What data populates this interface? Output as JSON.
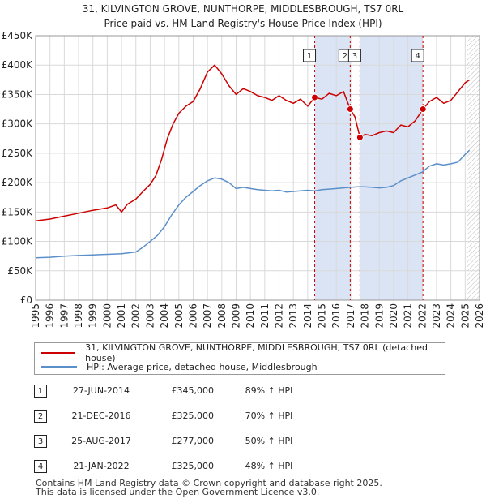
{
  "title_line1": "31, KILVINGTON GROVE, NUNTHORPE, MIDDLESBROUGH, TS7 0RL",
  "title_line2": "Price paid vs. HM Land Registry's House Price Index (HPI)",
  "colors": {
    "property": "#cc0000",
    "hpi": "#5b8fc9",
    "band": "#dbe4f5",
    "grid": "#d9d9d9",
    "marker_line": "#cc0000"
  },
  "chart_data": {
    "type": "line",
    "x_unit": "year",
    "xlim": [
      1995,
      2026
    ],
    "ylim": [
      0,
      450000
    ],
    "y_ticks": [
      0,
      50000,
      100000,
      150000,
      200000,
      250000,
      300000,
      350000,
      400000,
      450000
    ],
    "y_tick_labels": [
      "£0",
      "£50K",
      "£100K",
      "£150K",
      "£200K",
      "£250K",
      "£300K",
      "£350K",
      "£400K",
      "£450K"
    ],
    "x_ticks": [
      1995,
      1996,
      1997,
      1998,
      1999,
      2000,
      2001,
      2002,
      2003,
      2004,
      2005,
      2006,
      2007,
      2008,
      2009,
      2010,
      2011,
      2012,
      2013,
      2014,
      2015,
      2016,
      2017,
      2018,
      2019,
      2020,
      2021,
      2022,
      2023,
      2024,
      2025,
      2026
    ],
    "x_tick_labels": [
      "1995",
      "1996",
      "1997",
      "1998",
      "1999",
      "2000",
      "2001",
      "2002",
      "2003",
      "2004",
      "2005",
      "2006",
      "2007",
      "2008",
      "2009",
      "2010",
      "2011",
      "2012",
      "2013",
      "2014",
      "2015",
      "2016",
      "2017",
      "2018",
      "2019",
      "2020",
      "2021",
      "2022",
      "2023",
      "2024",
      "2025",
      "2026"
    ],
    "grid": true,
    "shaded_ranges": [
      [
        2014.49,
        2016.97
      ],
      [
        2017.65,
        2022.05
      ]
    ],
    "future_hatch_start": 2025.1,
    "series": [
      {
        "name": "31, KILVINGTON GROVE, NUNTHORPE, MIDDLESBROUGH, TS7 0RL (detached house)",
        "color": "#cc0000",
        "x": [
          1995,
          1996,
          1997,
          1998,
          1999,
          2000,
          2000.6,
          2001,
          2001.4,
          2002,
          2002.5,
          2003,
          2003.4,
          2003.8,
          2004.2,
          2004.6,
          2005,
          2005.5,
          2006,
          2006.5,
          2007,
          2007.5,
          2008,
          2008.5,
          2009,
          2009.5,
          2010,
          2010.5,
          2011,
          2011.5,
          2012,
          2012.5,
          2013,
          2013.5,
          2014,
          2014.49,
          2015,
          2015.5,
          2016,
          2016.5,
          2016.97,
          2017.3,
          2017.65,
          2018,
          2018.5,
          2019,
          2019.5,
          2020,
          2020.5,
          2021,
          2021.5,
          2022.05,
          2022.5,
          2023,
          2023.5,
          2024,
          2024.5,
          2025,
          2025.3
        ],
        "values": [
          135000,
          138000,
          143000,
          148000,
          153000,
          157000,
          162000,
          150000,
          163000,
          172000,
          185000,
          197000,
          212000,
          240000,
          275000,
          300000,
          318000,
          330000,
          338000,
          360000,
          388000,
          400000,
          385000,
          365000,
          350000,
          360000,
          355000,
          348000,
          345000,
          340000,
          348000,
          340000,
          335000,
          342000,
          330000,
          345000,
          342000,
          352000,
          348000,
          355000,
          325000,
          312000,
          277000,
          282000,
          280000,
          285000,
          288000,
          285000,
          298000,
          295000,
          305000,
          325000,
          338000,
          345000,
          335000,
          340000,
          355000,
          370000,
          375000
        ]
      },
      {
        "name": "HPI: Average price, detached house, Middlesbrough",
        "color": "#5b8fc9",
        "x": [
          1995,
          1996,
          1997,
          1998,
          1999,
          2000,
          2001,
          2002,
          2002.5,
          2003,
          2003.5,
          2004,
          2004.5,
          2005,
          2005.5,
          2006,
          2006.5,
          2007,
          2007.5,
          2008,
          2008.5,
          2009,
          2009.5,
          2010,
          2010.5,
          2011,
          2011.5,
          2012,
          2012.5,
          2013,
          2013.5,
          2014,
          2014.5,
          2015,
          2015.5,
          2016,
          2016.5,
          2017,
          2017.5,
          2018,
          2018.5,
          2019,
          2019.5,
          2020,
          2020.5,
          2021,
          2021.5,
          2022,
          2022.5,
          2023,
          2023.5,
          2024,
          2024.5,
          2025,
          2025.3
        ],
        "values": [
          72000,
          73000,
          75000,
          76000,
          77000,
          78000,
          79000,
          82000,
          90000,
          100000,
          110000,
          125000,
          145000,
          162000,
          175000,
          185000,
          195000,
          203000,
          208000,
          206000,
          200000,
          190000,
          192000,
          190000,
          188000,
          187000,
          186000,
          187000,
          184000,
          185000,
          186000,
          187000,
          186000,
          188000,
          189000,
          190000,
          191000,
          192000,
          193000,
          193000,
          192000,
          191000,
          192000,
          195000,
          203000,
          208000,
          213000,
          218000,
          228000,
          232000,
          230000,
          232000,
          235000,
          248000,
          255000
        ]
      }
    ],
    "sale_points": [
      {
        "label": "1",
        "x": 2014.49,
        "value": 345000
      },
      {
        "label": "2",
        "x": 2016.97,
        "value": 325000
      },
      {
        "label": "3",
        "x": 2017.65,
        "value": 277000
      },
      {
        "label": "4",
        "x": 2022.05,
        "value": 325000
      }
    ]
  },
  "legend": {
    "property_label": "31, KILVINGTON GROVE, NUNTHORPE, MIDDLESBROUGH, TS7 0RL (detached house)",
    "hpi_label": "HPI: Average price, detached house, Middlesbrough"
  },
  "sales": [
    {
      "num": "1",
      "date": "27-JUN-2014",
      "price": "£345,000",
      "hpi": "89% ↑ HPI"
    },
    {
      "num": "2",
      "date": "21-DEC-2016",
      "price": "£325,000",
      "hpi": "70% ↑ HPI"
    },
    {
      "num": "3",
      "date": "25-AUG-2017",
      "price": "£277,000",
      "hpi": "50% ↑ HPI"
    },
    {
      "num": "4",
      "date": "21-JAN-2022",
      "price": "£325,000",
      "hpi": "48% ↑ HPI"
    }
  ],
  "footer": {
    "line1": "Contains HM Land Registry data © Crown copyright and database right 2025.",
    "line2": "This data is licensed under the Open Government Licence v3.0."
  }
}
